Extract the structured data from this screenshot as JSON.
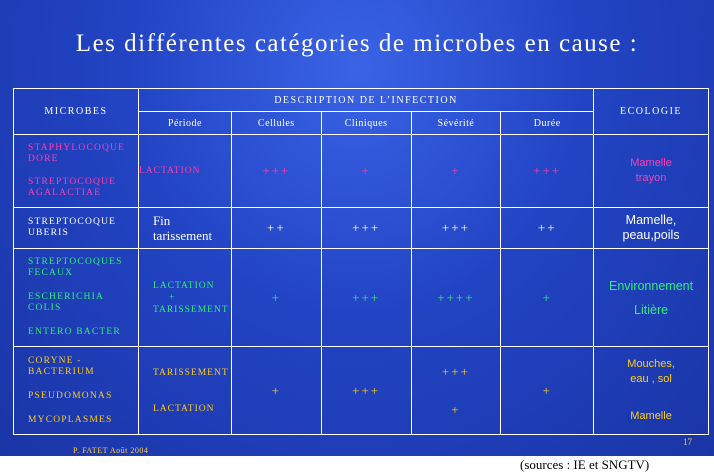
{
  "title": "Les différentes catégories de microbes en cause :",
  "header": {
    "microbes": "MICROBES",
    "description": "DESCRIPTION  DE L’INFECTION",
    "ecologie": "ECOLOGIE",
    "periode": "Période",
    "cellules": "Cellules",
    "cliniques": "Cliniques",
    "severite": "Sévérité",
    "duree": "Durée"
  },
  "rows": [
    {
      "microbes": [
        "STAPHYLOCOQUE DORE",
        "STREPTOCOQUE AGALACTIAE"
      ],
      "periode": [
        "LACTATION"
      ],
      "cellules": "+++",
      "cliniques": "+",
      "severite": "+",
      "duree": "+++",
      "ecologie": [
        "Mamelle",
        "trayon"
      ]
    },
    {
      "microbes": [
        "STREPTOCOQUE UBERIS"
      ],
      "periode": [
        "Fin tarissement"
      ],
      "cellules": "++",
      "cliniques": "+++",
      "severite": "+++",
      "duree": "++",
      "ecologie": [
        "Mamelle,",
        "peau,poils"
      ]
    },
    {
      "microbes": [
        "STREPTOCOQUES FECAUX",
        "ESCHERICHIA COLIS",
        "ENTERO BACTER"
      ],
      "periode": [
        "LACTATION",
        "+",
        "TARISSEMENT"
      ],
      "cellules": "+",
      "cliniques": "+++",
      "severite": "++++",
      "duree": "+",
      "ecologie": [
        "Environnement",
        "Litière"
      ]
    },
    {
      "microbes": [
        "CORYNE - BACTERIUM",
        "PSEUDOMONAS",
        "MYCOPLASMES"
      ],
      "periode": [
        "TARISSEMENT",
        "LACTATION"
      ],
      "cellules": "+",
      "cliniques": "+++",
      "severite": [
        "+++",
        "+"
      ],
      "duree": "+",
      "ecologie": [
        "Mouches,",
        "eau , sol",
        "Mamelle"
      ]
    }
  ],
  "footer": {
    "author": "P. FATET    Août 2004",
    "page": "17",
    "source": "(sources : IE et SNGTV)"
  },
  "colors": {
    "background": "#2a4bd0",
    "pink": "#ff3fb0",
    "green": "#33ee77",
    "yellow": "#ffcc22",
    "white": "#ffffff"
  }
}
